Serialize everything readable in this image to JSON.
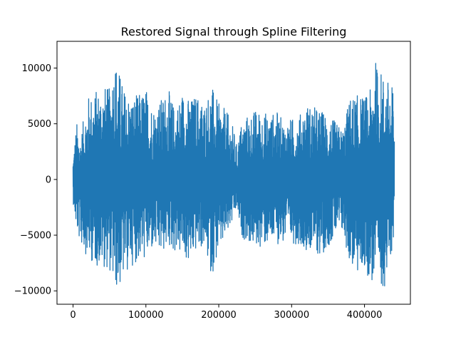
{
  "chart_data": {
    "type": "line",
    "title": "Restored Signal through Spline Filtering",
    "xlabel": "",
    "ylabel": "",
    "xlim": [
      -22000,
      463000
    ],
    "ylim": [
      -11200,
      12400
    ],
    "x_ticks": [
      0,
      100000,
      200000,
      300000,
      400000
    ],
    "x_tick_labels": [
      "0",
      "100000",
      "200000",
      "300000",
      "400000"
    ],
    "y_ticks": [
      -10000,
      -5000,
      0,
      5000,
      10000
    ],
    "y_tick_labels": [
      "−10000",
      "−5000",
      "0",
      "5000",
      "10000"
    ],
    "grid": false,
    "series": [
      {
        "name": "",
        "color": "#1f77b4",
        "x_range": [
          0,
          441000
        ],
        "envelope": {
          "x": [
            0,
            5000,
            10000,
            20000,
            30000,
            40000,
            50000,
            57000,
            62000,
            70000,
            80000,
            90000,
            100000,
            110000,
            120000,
            130000,
            140000,
            150000,
            160000,
            170000,
            180000,
            190000,
            200000,
            210000,
            220000,
            225000,
            230000,
            240000,
            250000,
            260000,
            270000,
            280000,
            290000,
            300000,
            310000,
            320000,
            330000,
            340000,
            350000,
            360000,
            370000,
            380000,
            390000,
            400000,
            410000,
            412000,
            420000,
            430000,
            441000
          ],
          "upper": [
            2000,
            5200,
            3800,
            7500,
            8000,
            8600,
            8200,
            11300,
            10200,
            8200,
            7500,
            7700,
            8300,
            6700,
            7200,
            8300,
            6400,
            8100,
            7200,
            7800,
            7000,
            8500,
            6800,
            6300,
            4700,
            3000,
            5000,
            5900,
            6300,
            6200,
            5900,
            6100,
            5200,
            5500,
            5700,
            6900,
            6600,
            6300,
            5800,
            5200,
            4500,
            7500,
            7600,
            7500,
            8200,
            11300,
            10000,
            9200,
            8200
          ],
          "lower": [
            -2000,
            -4900,
            -5800,
            -7000,
            -7800,
            -7800,
            -8200,
            -9800,
            -10100,
            -8800,
            -7800,
            -7300,
            -7300,
            -6400,
            -7000,
            -6100,
            -6600,
            -6900,
            -7800,
            -6300,
            -6200,
            -8700,
            -6700,
            -5400,
            -3800,
            -2700,
            -5100,
            -5700,
            -6200,
            -6100,
            -5900,
            -5800,
            -5800,
            -5800,
            -5800,
            -6300,
            -6600,
            -7000,
            -6000,
            -5200,
            -5000,
            -7600,
            -8700,
            -8200,
            -9400,
            -9300,
            -9700,
            -9600,
            -5200
          ]
        }
      }
    ]
  }
}
